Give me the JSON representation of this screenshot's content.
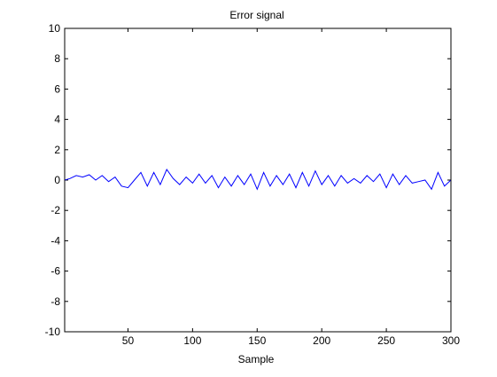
{
  "chart_data": {
    "type": "line",
    "title": "Error signal",
    "xlabel": "Sample",
    "ylabel": "",
    "xlim": [
      1,
      300
    ],
    "ylim": [
      -10,
      10
    ],
    "xticks": [
      50,
      100,
      150,
      200,
      250,
      300
    ],
    "yticks": [
      -10,
      -8,
      -6,
      -4,
      -2,
      0,
      2,
      4,
      6,
      8,
      10
    ],
    "grid": false,
    "legend": "none",
    "line_color": "#0000ff",
    "series": [
      {
        "x": [
          1,
          5,
          10,
          15,
          20,
          25,
          30,
          35,
          40,
          45,
          50,
          55,
          60,
          65,
          70,
          75,
          80,
          85,
          90,
          95,
          100,
          105,
          110,
          115,
          120,
          125,
          130,
          135,
          140,
          145,
          150,
          155,
          160,
          165,
          170,
          175,
          180,
          185,
          190,
          195,
          200,
          205,
          210,
          215,
          220,
          225,
          230,
          235,
          240,
          245,
          250,
          255,
          260,
          265,
          270,
          275,
          280,
          285,
          290,
          295,
          300
        ],
        "values": [
          0.0,
          0.1,
          0.3,
          0.2,
          0.35,
          0.0,
          0.3,
          -0.1,
          0.2,
          -0.4,
          -0.5,
          0.0,
          0.5,
          -0.4,
          0.5,
          -0.3,
          0.7,
          0.1,
          -0.3,
          0.2,
          -0.2,
          0.4,
          -0.2,
          0.3,
          -0.5,
          0.2,
          -0.4,
          0.3,
          -0.3,
          0.4,
          -0.6,
          0.5,
          -0.4,
          0.3,
          -0.3,
          0.4,
          -0.5,
          0.5,
          -0.4,
          0.6,
          -0.3,
          0.3,
          -0.4,
          0.3,
          -0.2,
          0.1,
          -0.2,
          0.3,
          -0.1,
          0.4,
          -0.5,
          0.4,
          -0.3,
          0.3,
          -0.2,
          -0.1,
          0.0,
          -0.6,
          0.5,
          -0.4,
          0.0
        ]
      }
    ]
  }
}
